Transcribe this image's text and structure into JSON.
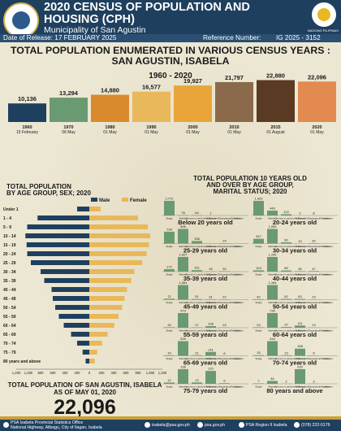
{
  "header": {
    "title": "2020 CENSUS OF POPULATION AND HOUSING (CPH)",
    "subtitle": "Municipality of San Agustin",
    "release": "Date of Release: 17 FEBRUARY 2025",
    "ref_label": "Reference Number:",
    "ref_number": "IG 2025 - 3152",
    "flag_text": "BAGONG PILIPINAS"
  },
  "main_title": "TOTAL POPULATION ENUMERATED IN VARIOUS CENSUS YEARS : SAN AGUSTIN, ISABELA",
  "years_range": "1960 - 2020",
  "chart_data": [
    {
      "type": "bar",
      "categories": [
        "1960",
        "1970",
        "1980",
        "1990",
        "2000",
        "2010",
        "2015",
        "2020"
      ],
      "dates": [
        "15 February",
        "06 May",
        "01 May",
        "01 May",
        "01 May",
        "01 May",
        "01 August",
        "01 May"
      ],
      "values": [
        10136,
        13294,
        14880,
        16577,
        19927,
        21797,
        22880,
        22096
      ],
      "labels": [
        "10,136",
        "13,294",
        "14,880",
        "16,577",
        "19,927",
        "21,797",
        "22,880",
        "22,096"
      ],
      "colors": [
        "#1f3f5e",
        "#6a9a72",
        "#d98a2c",
        "#e9b85a",
        "#e9a53a",
        "#8a6a4a",
        "#5a3a22",
        "#e28a4f"
      ]
    },
    {
      "type": "bar",
      "title": "TOTAL POPULATION BY AGE GROUP, SEX; 2020",
      "orientation": "horizontal-pyramid",
      "categories": [
        "Under 1",
        "1 - 4",
        "5 - 9",
        "10 - 14",
        "15 - 19",
        "20 - 24",
        "25 - 29",
        "30 - 34",
        "35 - 39",
        "40 - 44",
        "45 - 49",
        "50 - 54",
        "55 - 59",
        "60 - 64",
        "65 - 69",
        "70 - 74",
        "75 - 79",
        "80 years and above"
      ],
      "series": [
        {
          "name": "Male",
          "color": "#1f3f5e",
          "values": [
            200,
            850,
            1020,
            1050,
            1030,
            1020,
            960,
            800,
            740,
            620,
            600,
            560,
            500,
            420,
            300,
            200,
            110,
            60
          ],
          "labels": [
            "",
            "",
            "",
            "",
            "",
            "",
            "",
            "",
            "",
            "",
            "",
            "",
            "",
            "",
            "",
            "",
            "",
            ""
          ]
        },
        {
          "name": "Female",
          "color": "#e9b85a",
          "values": [
            185,
            800,
            960,
            1000,
            980,
            940,
            870,
            740,
            690,
            620,
            580,
            540,
            480,
            410,
            300,
            210,
            130,
            90
          ],
          "labels": [
            "",
            "",
            "",
            "",
            "",
            "",
            "",
            "",
            "",
            "",
            "",
            "",
            "",
            "",
            "",
            "",
            "",
            ""
          ]
        }
      ],
      "xticks": [
        "1,200",
        "1,000",
        "800",
        "600",
        "400",
        "200",
        "0",
        "200",
        "400",
        "600",
        "800",
        "1,000",
        "1,200"
      ]
    },
    {
      "type": "bar",
      "title": "TOTAL POPULATION 10 YEARS OLD AND OVER BY AGE GROUP, MARITAL STATUS; 2020",
      "categories": [
        "Single",
        "Married",
        "Common Law/Live-in",
        "Widowed",
        "Divorced/Separated/Annulled",
        "Unknown"
      ],
      "panels": [
        {
          "name": "Below 20 years old",
          "values": [
            2772,
            78,
            64,
            1,
            0,
            0
          ],
          "labels": [
            "2,772",
            "78",
            "64",
            "1",
            "",
            ""
          ]
        },
        {
          "name": "20-24 years old",
          "values": [
            1329,
            443,
            122,
            2,
            8,
            0
          ],
          "labels": [
            "1,329",
            "443",
            "122",
            "2",
            "8",
            ""
          ]
        },
        {
          "name": "25-29 years old",
          "values": [
            734,
            906,
            156,
            4,
            24,
            0
          ],
          "labels": [
            "734",
            "906",
            "156",
            "",
            "24",
            ""
          ]
        },
        {
          "name": "30-34 years old",
          "values": [
            347,
            1059,
            90,
            10,
            32,
            0
          ],
          "labels": [
            "347",
            "1,059",
            "90",
            "10",
            "32",
            ""
          ]
        },
        {
          "name": "35-39 years old",
          "values": [
            172,
            1027,
            101,
            16,
            32,
            0
          ],
          "labels": [
            "172",
            "1,027",
            "101",
            "16",
            "32",
            ""
          ]
        },
        {
          "name": "40-44 years old",
          "values": [
            104,
            1159,
            89,
            36,
            47,
            0
          ],
          "labels": [
            "104",
            "1,159",
            "89",
            "36",
            "47",
            ""
          ]
        },
        {
          "name": "45-49 years old",
          "values": [
            72,
            1081,
            51,
            31,
            22,
            0
          ],
          "labels": [
            "72",
            "1,081",
            "51",
            "31",
            "22",
            ""
          ]
        },
        {
          "name": "50-54 years old",
          "values": [
            42,
            1164,
            62,
            63,
            23,
            0
          ],
          "labels": [
            "42",
            "1,164",
            "62",
            "63",
            "23",
            ""
          ]
        },
        {
          "name": "55-59 years old",
          "values": [
            34,
            973,
            27,
            108,
            23,
            0
          ],
          "labels": [
            "34",
            "973",
            "27",
            "108",
            "23",
            ""
          ]
        },
        {
          "name": "60-64 years old",
          "values": [
            24,
            730,
            37,
            111,
            13,
            0
          ],
          "labels": [
            "24",
            "730",
            "37",
            "111",
            "13",
            ""
          ]
        },
        {
          "name": "65-69 years old",
          "values": [
            19,
            539,
            21,
            141,
            6,
            0
          ],
          "labels": [
            "19",
            "539",
            "21",
            "141",
            "6",
            ""
          ]
        },
        {
          "name": "70-74 years old",
          "values": [
            15,
            344,
            13,
            168,
            8,
            0
          ],
          "labels": [
            "15",
            "344",
            "13",
            "168",
            "8",
            ""
          ]
        },
        {
          "name": "75-79 years old",
          "values": [
            12,
            136,
            13,
            120,
            6,
            0
          ],
          "labels": [
            "12",
            "136",
            "13",
            "120",
            "6",
            ""
          ]
        },
        {
          "name": "80 years and above",
          "values": [
            7,
            46,
            2,
            232,
            3,
            0
          ],
          "labels": [
            "7",
            "46",
            "2",
            "232",
            "3",
            ""
          ]
        }
      ]
    }
  ],
  "total": {
    "label": "TOTAL POPULATION OF SAN AGUSTIN, ISABELA",
    "date": "AS OF MAY 01, 2020",
    "value": "22,096"
  },
  "footer": {
    "office": "PSA Isabela Provincial Statistics Office",
    "address": "National Highway, Alibagu, City of Ilagan, Isabela",
    "email": "isabela@psa.gov.ph",
    "web": "psa.gov.ph",
    "fb": "PSA Region II Isabela",
    "phone": "(078) 232-0176"
  }
}
